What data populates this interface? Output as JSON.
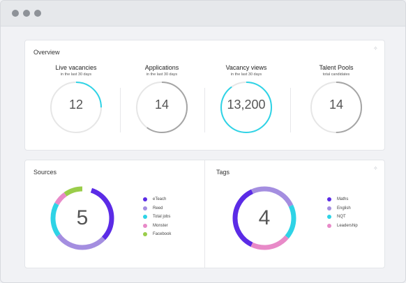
{
  "colors": {
    "purple": "#5b2be6",
    "lavender": "#a48ee0",
    "cyan": "#2ed3e6",
    "pink": "#e88ac8",
    "green": "#9acd4a",
    "gray": "#a5a5a5",
    "track": "#e6e6e6"
  },
  "overview": {
    "title": "Overview",
    "metrics": [
      {
        "title": "Live vacancies",
        "subtitle": "in the last 30 days",
        "value": "12",
        "arc_fraction": 0.25,
        "arc_color": "cyan"
      },
      {
        "title": "Applications",
        "subtitle": "in the last 30 days",
        "value": "14",
        "arc_fraction": 0.6,
        "arc_color": "gray"
      },
      {
        "title": "Vacancy views",
        "subtitle": "in the last 30 days",
        "value": "13,200",
        "arc_fraction": 0.9,
        "arc_color": "cyan"
      },
      {
        "title": "Talent Pools",
        "subtitle": "total candidates",
        "value": "14",
        "arc_fraction": 0.5,
        "arc_color": "gray"
      }
    ]
  },
  "sources": {
    "title": "Sources",
    "value": "5",
    "legend": [
      {
        "label": "eTeach",
        "color": "purple",
        "share": 0.32
      },
      {
        "label": "Reed",
        "color": "lavender",
        "share": 0.28
      },
      {
        "label": "Total jobs",
        "color": "cyan",
        "share": 0.18
      },
      {
        "label": "Monster",
        "color": "pink",
        "share": 0.07
      },
      {
        "label": "Facebook",
        "color": "green",
        "share": 0.1
      }
    ],
    "start_offset": 0.05
  },
  "tags": {
    "title": "Tags",
    "value": "4",
    "legend": [
      {
        "label": "Maths",
        "color": "purple",
        "share": 0.36
      },
      {
        "label": "English",
        "color": "lavender",
        "share": 0.25
      },
      {
        "label": "NQT",
        "color": "cyan",
        "share": 0.18
      },
      {
        "label": "Leadership",
        "color": "pink",
        "share": 0.21
      }
    ],
    "start_offset": 0.57
  }
}
